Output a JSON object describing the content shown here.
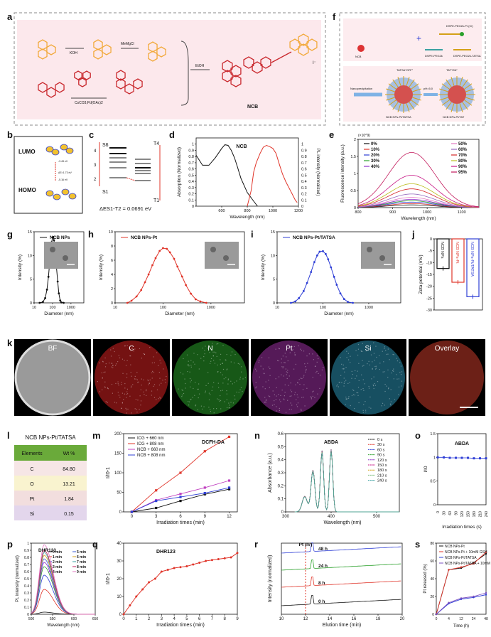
{
  "panel_letters": {
    "a": "a",
    "b": "b",
    "c": "c",
    "d": "d",
    "e": "e",
    "f": "f",
    "g": "g",
    "h": "h",
    "i": "i",
    "j": "j",
    "k": "k",
    "l": "l",
    "m": "m",
    "n": "n",
    "o": "o",
    "p": "p",
    "q": "q",
    "r": "r",
    "s": "s"
  },
  "scheme_a": {
    "reagents": [
      "KOH",
      "MeMgCl",
      "CsCO3,Pd(OAc)2",
      "EtOH"
    ],
    "product": "NCB",
    "counterion": "I⁻"
  },
  "scheme_f": {
    "ncb": "NCB",
    "peg_pt": "DSPE-PEG2k-Pt (IV)",
    "peg": "DSPE-PEG2k",
    "peg_tat": "DSPE-PEG2k-TATSA",
    "tat_off": "TATSA\"OFF\"",
    "tat_on": "TAT\"ON\"",
    "nanoprecip": "Nanoprecipitation",
    "ph": "pH=5.0",
    "np1": "NCB NPs-Pt/TATSA",
    "np2": "NCB NPs-Pt/TAT"
  },
  "panel_b": {
    "lumo": "LUMO",
    "homo": "HOMO",
    "e1": "-3.43 eV",
    "gap": "ΔE=1.73 eV",
    "e2": "-5.16 eV"
  },
  "panel_c": {
    "s1": "S1",
    "sn": "S6",
    "t1": "T1",
    "tn": "T4",
    "delta": "ΔES1-T2 = 0.0691 eV"
  },
  "chart_data": [
    {
      "panel": "d",
      "type": "line",
      "title": "NCB",
      "xlabel": "Wavelength (nm)",
      "ylabel": "Absorption (Normalized)",
      "y2label": "PL intensity (Normalized)",
      "xlim": [
        400,
        1200
      ],
      "ylim": [
        0,
        1.1
      ],
      "y2lim": [
        0,
        1.1
      ],
      "xticks": [
        600,
        800,
        1000,
        1200
      ],
      "yticks": [
        0.0,
        0.1,
        0.2,
        0.3,
        0.4,
        0.5,
        0.6,
        0.7,
        0.8,
        0.9,
        1.0
      ],
      "series": [
        {
          "values_x": [
            400,
            450,
            500,
            550,
            600,
            625,
            650,
            675,
            700,
            725,
            750,
            800,
            850,
            880
          ],
          "values_y": [
            0.82,
            0.66,
            0.66,
            0.78,
            0.93,
            0.99,
            0.98,
            0.9,
            0.78,
            0.62,
            0.45,
            0.22,
            0.08,
            0.0
          ],
          "color": "#111111",
          "axis": "left"
        },
        {
          "values_x": [
            800,
            830,
            850,
            870,
            900,
            925,
            950,
            975,
            1000,
            1025,
            1050,
            1075,
            1100,
            1125,
            1150,
            1175,
            1190
          ],
          "values_y": [
            0.0,
            0.25,
            0.55,
            0.7,
            0.85,
            0.95,
            0.98,
            0.96,
            0.93,
            0.85,
            0.68,
            0.52,
            0.4,
            0.3,
            0.2,
            0.1,
            0.06
          ],
          "color": "#e0352a",
          "axis": "right"
        }
      ]
    },
    {
      "panel": "e",
      "type": "line",
      "multiplier": "(×10^9)",
      "xlabel": "Wavelength (nm)",
      "ylabel": "Fluorescence intensity (a.u.)",
      "xlim": [
        800,
        1150
      ],
      "ylim": [
        0,
        2.0
      ],
      "xticks": [
        800,
        900,
        1000,
        1100
      ],
      "yticks": [
        0.0,
        0.5,
        1.0,
        1.5,
        2.0
      ],
      "series": [
        {
          "name": "0%",
          "peak": 0.08,
          "color": "#111111"
        },
        {
          "name": "10%",
          "peak": 0.12,
          "color": "#e0352a"
        },
        {
          "name": "20%",
          "peak": 0.16,
          "color": "#2f3fd6"
        },
        {
          "name": "30%",
          "peak": 0.2,
          "color": "#2aa02a"
        },
        {
          "name": "40%",
          "peak": 0.24,
          "color": "#8b2fc9"
        },
        {
          "name": "50%",
          "peak": 0.3,
          "color": "#e377c2"
        },
        {
          "name": "60%",
          "peak": 0.4,
          "color": "#9467bd"
        },
        {
          "name": "70%",
          "peak": 0.55,
          "color": "#d62728"
        },
        {
          "name": "80%",
          "peak": 0.7,
          "color": "#bcbd22"
        },
        {
          "name": "90%",
          "peak": 0.95,
          "color": "#c71585"
        },
        {
          "name": "95%",
          "peak": 1.62,
          "color": "#c2185b"
        }
      ]
    },
    {
      "panel": "g",
      "type": "line",
      "xlabel": "Diameter (nm)",
      "ylabel": "Intensity (%)",
      "xscale": "log",
      "xlim": [
        10,
        5000
      ],
      "ylim": [
        0,
        15
      ],
      "xticks": [
        10,
        100,
        1000
      ],
      "yticks": [
        0,
        5,
        10,
        15
      ],
      "series": [
        {
          "name": "NCB NPs",
          "color": "#111111",
          "x": [
            20,
            30,
            40,
            50,
            60,
            70,
            80,
            90,
            100,
            110,
            120,
            140,
            160,
            190,
            220,
            260,
            300,
            400
          ],
          "y": [
            0,
            0.2,
            1.0,
            2.8,
            5.5,
            8.5,
            11.0,
            12.8,
            13.8,
            13.9,
            13.2,
            11.0,
            8.0,
            4.5,
            2.0,
            0.5,
            0.1,
            0
          ]
        }
      ]
    },
    {
      "panel": "h",
      "type": "line",
      "xlabel": "Diameter (nm)",
      "ylabel": "Intensity (%)",
      "xscale": "log",
      "xlim": [
        10,
        5000
      ],
      "ylim": [
        0,
        10
      ],
      "xticks": [
        10,
        100,
        1000
      ],
      "yticks": [
        0,
        2,
        4,
        6,
        8,
        10
      ],
      "series": [
        {
          "name": "NCB NPs-Pt",
          "color": "#e0352a",
          "x": [
            18,
            22,
            28,
            35,
            42,
            50,
            60,
            70,
            85,
            100,
            120,
            140,
            170,
            200,
            250,
            300,
            380,
            480,
            600,
            800
          ],
          "y": [
            0,
            0.3,
            0.9,
            1.8,
            2.9,
            4.0,
            5.3,
            6.3,
            7.3,
            7.7,
            7.6,
            7.1,
            6.2,
            5.1,
            3.7,
            2.5,
            1.3,
            0.5,
            0.2,
            0
          ]
        }
      ]
    },
    {
      "panel": "i",
      "type": "line",
      "xlabel": "Diameter (nm)",
      "ylabel": "Intensity (%)",
      "xscale": "log",
      "xlim": [
        10,
        5000
      ],
      "ylim": [
        0,
        15
      ],
      "xticks": [
        10,
        100,
        1000
      ],
      "yticks": [
        0,
        5,
        10,
        15
      ],
      "series": [
        {
          "name": "NCB NPs-Pt/TATSA",
          "color": "#2f3fd6",
          "x": [
            20,
            25,
            30,
            38,
            45,
            55,
            65,
            75,
            85,
            100,
            115,
            130,
            150,
            175,
            200,
            240,
            290,
            350,
            450
          ],
          "y": [
            0,
            0.3,
            1.0,
            2.5,
            4.2,
            6.5,
            8.6,
            10.0,
            10.8,
            10.9,
            10.3,
            9.2,
            7.5,
            5.5,
            3.8,
            2.0,
            0.8,
            0.2,
            0
          ]
        }
      ]
    },
    {
      "panel": "j",
      "type": "bar",
      "ylabel": "Zeta potential (mV)",
      "ylim": [
        -30,
        0
      ],
      "yticks": [
        0,
        -5,
        -10,
        -15,
        -20,
        -25,
        -30
      ],
      "categories": [
        "NCB NPs",
        "NCB NPs-Pt",
        "NCB NPs-Pt/TATSA"
      ],
      "values": [
        -12.5,
        -18.3,
        -24.4
      ],
      "errors": [
        0.8,
        1.5,
        1.0
      ],
      "colors": [
        "#111111",
        "#e0352a",
        "#2f3fd6"
      ]
    },
    {
      "panel": "m",
      "type": "line",
      "title": "DCFH-DA",
      "xlabel": "Irradiation times (min)",
      "ylabel": "I/I0-1",
      "xlim": [
        -1,
        13
      ],
      "ylim": [
        0,
        200
      ],
      "xticks": [
        0,
        3,
        6,
        9,
        12
      ],
      "yticks": [
        0,
        50,
        100,
        150,
        200
      ],
      "x": [
        0,
        3,
        6,
        9,
        12
      ],
      "series": [
        {
          "name": "ICG + 660 nm",
          "color": "#111111",
          "values": [
            0,
            10,
            28,
            45,
            58
          ]
        },
        {
          "name": "ICG + 808 nm",
          "color": "#e0352a",
          "values": [
            0,
            55,
            100,
            155,
            192
          ]
        },
        {
          "name": "NCB + 660 nm",
          "color": "#c040c0",
          "values": [
            0,
            30,
            46,
            62,
            80
          ]
        },
        {
          "name": "NCB + 808 nm",
          "color": "#2f3fd6",
          "values": [
            0,
            28,
            38,
            48,
            62
          ]
        }
      ]
    },
    {
      "panel": "n",
      "type": "line",
      "title": "ABDA",
      "xlabel": "Wavelength (nm)",
      "ylabel": "Absorbance (a.u.)",
      "xlim": [
        300,
        550
      ],
      "ylim": [
        0,
        0.6
      ],
      "xticks": [
        300,
        400,
        500
      ],
      "yticks": [
        0.0,
        0.1,
        0.2,
        0.3,
        0.4,
        0.5,
        0.6
      ],
      "legend": [
        "0 s",
        "30 s",
        "60 s",
        "90 s",
        "120 s",
        "150 s",
        "180 s",
        "210 s",
        "240 s"
      ],
      "legend_colors": [
        "#111111",
        "#e0352a",
        "#2f3fd6",
        "#2aa02a",
        "#8b2fc9",
        "#c71585",
        "#d4a017",
        "#7fbf7f",
        "#3aa0a0"
      ]
    },
    {
      "panel": "o",
      "type": "line",
      "title": "ABDA",
      "xlabel": "Irradiation times (s)",
      "ylabel": "I/I0",
      "ylim": [
        0,
        1.5
      ],
      "yticks": [
        0.0,
        0.5,
        1.0,
        1.5
      ],
      "categories": [
        "0",
        "30",
        "60",
        "90",
        "120",
        "150",
        "180",
        "210",
        "240"
      ],
      "values": [
        1.0,
        1.0,
        0.99,
        0.99,
        0.99,
        0.99,
        0.98,
        0.98,
        0.98
      ],
      "color": "#2f3fd6"
    },
    {
      "panel": "p",
      "type": "line",
      "title": "DHR123",
      "xlabel": "Wavelength (nm)",
      "ylabel": "PL intensity (normalized)",
      "xlim": [
        500,
        650
      ],
      "ylim": [
        0,
        1.0
      ],
      "xticks": [
        500,
        550,
        600,
        650
      ],
      "yticks": [
        0.0,
        0.1,
        0.2,
        0.3,
        0.4,
        0.5,
        0.6,
        0.7,
        0.8,
        0.9,
        1.0
      ],
      "series": [
        {
          "name": "0 min",
          "peak": 0.03,
          "color": "#111111"
        },
        {
          "name": "1 min",
          "peak": 0.35,
          "color": "#e0352a"
        },
        {
          "name": "2 min",
          "peak": 0.55,
          "color": "#2f3fd6"
        },
        {
          "name": "3 min",
          "peak": 0.67,
          "color": "#2aa02a"
        },
        {
          "name": "4 min",
          "peak": 0.73,
          "color": "#8b2fc9"
        },
        {
          "name": "5 min",
          "peak": 0.78,
          "color": "#3b5bd6"
        },
        {
          "name": "6 min",
          "peak": 0.83,
          "color": "#d4a017"
        },
        {
          "name": "7 min",
          "peak": 0.87,
          "color": "#3aa0a0"
        },
        {
          "name": "8 min",
          "peak": 0.9,
          "color": "#c2185b"
        },
        {
          "name": "9 min",
          "peak": 0.98,
          "color": "#e377c2"
        }
      ]
    },
    {
      "panel": "q",
      "type": "line",
      "title": "DHR123",
      "xlabel": "Irradiation times (min)",
      "ylabel": "I/I0-1",
      "xlim": [
        0,
        9
      ],
      "ylim": [
        0,
        40
      ],
      "xticks": [
        0,
        1,
        2,
        3,
        4,
        5,
        6,
        7,
        8,
        9
      ],
      "yticks": [
        0,
        10,
        20,
        30,
        40
      ],
      "x": [
        0,
        0.5,
        1,
        1.5,
        2,
        2.5,
        3,
        3.5,
        4,
        4.5,
        5,
        5.5,
        6,
        6.5,
        7,
        7.5,
        8,
        8.5,
        9
      ],
      "values": [
        0,
        5,
        10,
        14,
        18,
        20,
        24,
        25,
        26,
        26.5,
        27,
        28,
        29,
        30,
        30.5,
        31,
        31.5,
        32,
        34.5
      ],
      "color": "#e0352a"
    },
    {
      "panel": "r",
      "type": "line",
      "title": "Pt (IV)",
      "xlabel": "Elution time (min)",
      "ylabel": "Intensity (normalized)",
      "xlim": [
        10,
        20
      ],
      "xticks": [
        10,
        12,
        14,
        16,
        18,
        20
      ],
      "series": [
        {
          "name": "48 h",
          "color": "#2f3fd6"
        },
        {
          "name": "24 h",
          "color": "#2aa02a"
        },
        {
          "name": "8 h",
          "color": "#e0352a"
        },
        {
          "name": "0 h",
          "color": "#111111"
        }
      ]
    },
    {
      "panel": "s",
      "type": "line",
      "xlabel": "Time (h)",
      "ylabel": "Pt released (%)",
      "xlim": [
        0,
        48
      ],
      "ylim": [
        0,
        80
      ],
      "xticks": [
        0,
        4,
        12,
        24,
        48
      ],
      "yticks": [
        0,
        20,
        40,
        60,
        80
      ],
      "series": [
        {
          "name": "NCB NPs-Pt",
          "color": "#111111",
          "values": [
            0,
            50,
            52,
            58,
            68
          ]
        },
        {
          "name": "NCB NPs-Pt + 10mM GSH",
          "color": "#e0352a",
          "values": [
            0,
            50,
            53,
            57,
            70
          ]
        },
        {
          "name": "NCB NPs-Pt/TATSA",
          "color": "#2f3fd6",
          "values": [
            0,
            12,
            17,
            19,
            22
          ]
        },
        {
          "name": "NCB NPs-Pt/TATSA + 10mM GSH",
          "color": "#7b4fc0",
          "values": [
            0,
            13,
            18,
            20,
            24
          ]
        }
      ]
    }
  ],
  "panel_k": {
    "labels": [
      "BF",
      "C",
      "N",
      "Pt",
      "Si",
      "Overlay"
    ]
  },
  "panel_l": {
    "title": "NCB NPs-Pt/TATSA",
    "headers": [
      "Elements",
      "Wt %"
    ],
    "rows": [
      [
        "C",
        "84.80"
      ],
      [
        "O",
        "13.21"
      ],
      [
        "Pt",
        "1.84"
      ],
      [
        "Si",
        "0.15"
      ]
    ]
  }
}
